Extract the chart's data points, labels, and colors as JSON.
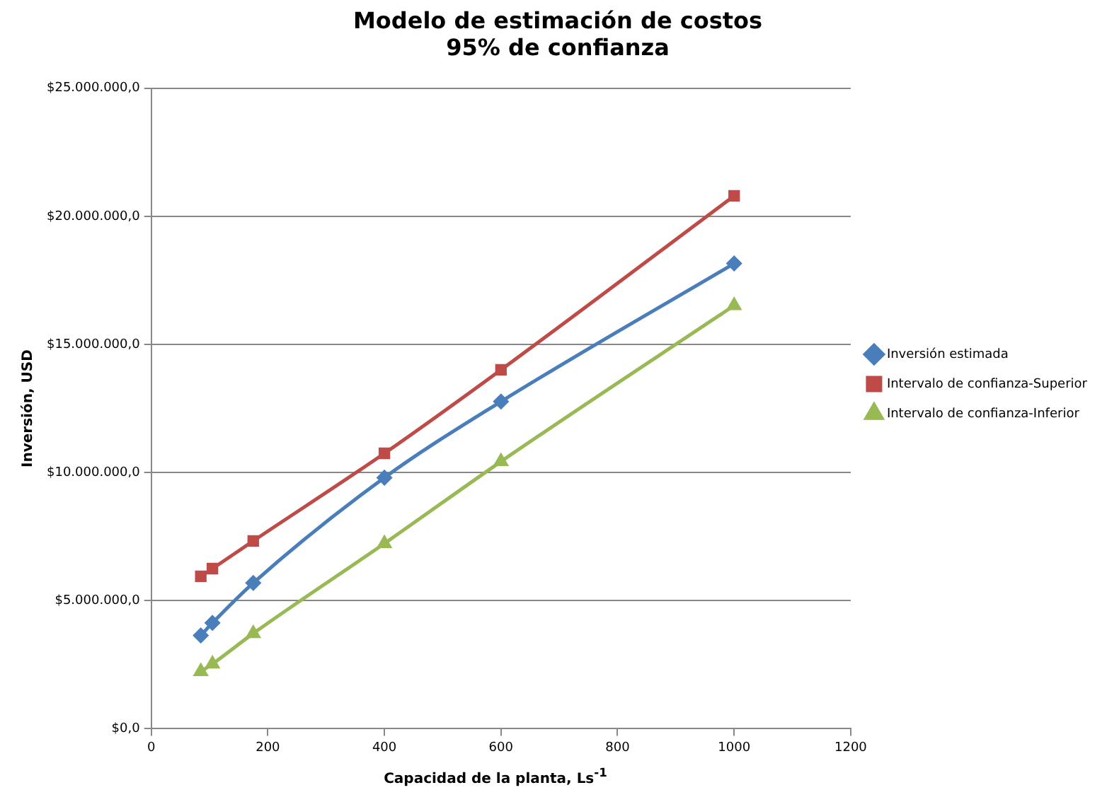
{
  "chart_data": {
    "type": "line",
    "title": [
      "Modelo de estimación de costos",
      "95% de confianza"
    ],
    "xlabel": "Capacidad de la planta,  Ls$^{-1}$",
    "ylabel": "Inversión, USD",
    "x": [
      85,
      105,
      175,
      400,
      600,
      1000
    ],
    "series": [
      {
        "name": "Inversión estimada",
        "color": "#4a7ebb",
        "marker": "diamond",
        "values": [
          3640000,
          4130000,
          5690000,
          9800000,
          12770000,
          18160000
        ]
      },
      {
        "name": "Intervalo de confianza-Superior",
        "color": "#be4b48",
        "marker": "square",
        "values": [
          5950000,
          6250000,
          7330000,
          10750000,
          14010000,
          20800000
        ]
      },
      {
        "name": "Intervalo de confianza-Inferior",
        "color": "#98b954",
        "marker": "triangle",
        "values": [
          2230000,
          2530000,
          3720000,
          7230000,
          10430000,
          16520000
        ]
      }
    ],
    "xlim": [
      0,
      1200
    ],
    "xticks": [
      0,
      200,
      400,
      600,
      800,
      1000,
      1200
    ],
    "ylim": [
      0,
      25000000
    ],
    "yticks": [
      {
        "value": 0,
        "label": "$0,0"
      },
      {
        "value": 5000000,
        "label": "$5.000.000,0"
      },
      {
        "value": 10000000,
        "label": "$10.000.000,0"
      },
      {
        "value": 15000000,
        "label": "$15.000.000,0"
      },
      {
        "value": 20000000,
        "label": "$20.000.000,0"
      },
      {
        "value": 25000000,
        "label": "$25.000.000,0"
      }
    ],
    "grid": "y",
    "legend": "right",
    "line_style": "solid"
  }
}
